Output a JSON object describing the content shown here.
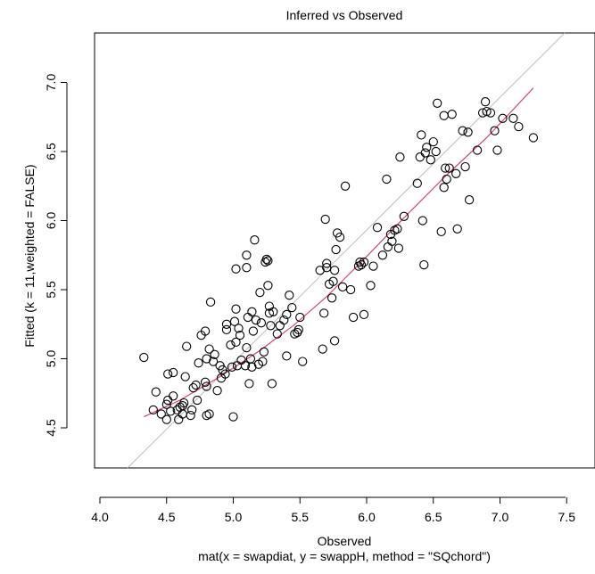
{
  "chart_data": {
    "type": "scatter",
    "title": "Inferred vs Observed",
    "xlabel": "Observed",
    "subtitle": "mat(x = swapdiat, y = swappH, method = \"SQchord\")",
    "ylabel": "Fitted (k = 11,weighted = FALSE)",
    "xlim": [
      4.0,
      7.5
    ],
    "ylim": [
      4.5,
      7.0
    ],
    "x_ticks": [
      "4.0",
      "4.5",
      "5.0",
      "5.5",
      "6.0",
      "6.5",
      "7.0",
      "7.5"
    ],
    "y_ticks": [
      "4.5",
      "5.0",
      "5.5",
      "6.0",
      "6.5",
      "7.0"
    ],
    "grid": false,
    "reference_line": {
      "type": "identity",
      "color": "#bebebe"
    },
    "smooth_line": {
      "color": "#d9456b",
      "points": [
        [
          4.33,
          4.58
        ],
        [
          4.6,
          4.7
        ],
        [
          4.9,
          4.87
        ],
        [
          5.2,
          5.06
        ],
        [
          5.45,
          5.24
        ],
        [
          5.7,
          5.45
        ],
        [
          6.0,
          5.74
        ],
        [
          6.3,
          6.04
        ],
        [
          6.6,
          6.33
        ],
        [
          6.9,
          6.6
        ],
        [
          7.25,
          6.96
        ]
      ]
    },
    "points": [
      [
        4.33,
        5.01
      ],
      [
        4.4,
        4.63
      ],
      [
        4.42,
        4.76
      ],
      [
        4.46,
        4.6
      ],
      [
        4.5,
        4.67
      ],
      [
        4.51,
        4.7
      ],
      [
        4.51,
        4.89
      ],
      [
        4.53,
        4.62
      ],
      [
        4.55,
        4.9
      ],
      [
        4.55,
        4.73
      ],
      [
        4.5,
        4.56
      ],
      [
        4.58,
        4.63
      ],
      [
        4.59,
        4.56
      ],
      [
        4.6,
        4.65
      ],
      [
        4.62,
        4.66
      ],
      [
        4.62,
        4.6
      ],
      [
        4.63,
        4.68
      ],
      [
        4.64,
        4.87
      ],
      [
        4.65,
        5.09
      ],
      [
        4.68,
        4.59
      ],
      [
        4.69,
        4.63
      ],
      [
        4.7,
        4.79
      ],
      [
        4.72,
        4.81
      ],
      [
        4.73,
        4.7
      ],
      [
        4.74,
        4.97
      ],
      [
        4.76,
        5.17
      ],
      [
        4.79,
        5.2
      ],
      [
        4.79,
        4.83
      ],
      [
        4.8,
        4.59
      ],
      [
        4.8,
        5.0
      ],
      [
        4.8,
        4.8
      ],
      [
        4.82,
        4.6
      ],
      [
        4.82,
        5.07
      ],
      [
        4.83,
        5.41
      ],
      [
        4.85,
        4.98
      ],
      [
        4.86,
        5.03
      ],
      [
        4.88,
        4.77
      ],
      [
        4.9,
        4.95
      ],
      [
        4.91,
        4.86
      ],
      [
        4.92,
        4.92
      ],
      [
        4.94,
        4.89
      ],
      [
        4.95,
        5.21
      ],
      [
        4.95,
        5.25
      ],
      [
        4.98,
        5.1
      ],
      [
        4.99,
        4.94
      ],
      [
        5.0,
        4.58
      ],
      [
        5.01,
        5.27
      ],
      [
        5.02,
        5.36
      ],
      [
        5.02,
        5.12
      ],
      [
        5.02,
        5.65
      ],
      [
        5.03,
        4.95
      ],
      [
        5.04,
        5.22
      ],
      [
        5.05,
        5.17
      ],
      [
        5.06,
        4.99
      ],
      [
        5.09,
        4.95
      ],
      [
        5.1,
        5.66
      ],
      [
        5.1,
        5.75
      ],
      [
        5.1,
        5.08
      ],
      [
        5.11,
        5.3
      ],
      [
        5.12,
        4.82
      ],
      [
        5.13,
        5.0
      ],
      [
        5.14,
        5.34
      ],
      [
        5.14,
        4.94
      ],
      [
        5.15,
        5.2
      ],
      [
        5.16,
        5.86
      ],
      [
        5.17,
        5.28
      ],
      [
        5.19,
        4.96
      ],
      [
        5.2,
        5.48
      ],
      [
        5.21,
        5.26
      ],
      [
        5.22,
        4.98
      ],
      [
        5.23,
        5.05
      ],
      [
        5.24,
        5.7
      ],
      [
        5.25,
        5.72
      ],
      [
        5.26,
        5.71
      ],
      [
        5.26,
        5.53
      ],
      [
        5.27,
        5.33
      ],
      [
        5.27,
        5.38
      ],
      [
        5.28,
        5.24
      ],
      [
        5.29,
        4.82
      ],
      [
        5.3,
        5.34
      ],
      [
        5.33,
        5.18
      ],
      [
        5.35,
        5.24
      ],
      [
        5.38,
        5.28
      ],
      [
        5.4,
        5.32
      ],
      [
        5.4,
        5.02
      ],
      [
        5.42,
        5.46
      ],
      [
        5.44,
        5.37
      ],
      [
        5.46,
        5.18
      ],
      [
        5.48,
        5.19
      ],
      [
        5.49,
        5.21
      ],
      [
        5.5,
        5.3
      ],
      [
        5.52,
        4.98
      ],
      [
        5.65,
        5.64
      ],
      [
        5.67,
        5.07
      ],
      [
        5.68,
        5.33
      ],
      [
        5.69,
        6.01
      ],
      [
        5.7,
        5.66
      ],
      [
        5.7,
        5.69
      ],
      [
        5.72,
        5.54
      ],
      [
        5.74,
        5.44
      ],
      [
        5.75,
        5.56
      ],
      [
        5.76,
        5.64
      ],
      [
        5.76,
        5.13
      ],
      [
        5.77,
        5.79
      ],
      [
        5.78,
        5.91
      ],
      [
        5.8,
        5.88
      ],
      [
        5.82,
        5.52
      ],
      [
        5.84,
        6.25
      ],
      [
        5.88,
        5.5
      ],
      [
        5.9,
        5.3
      ],
      [
        5.94,
        5.67
      ],
      [
        5.95,
        5.7
      ],
      [
        5.96,
        5.68
      ],
      [
        5.98,
        5.32
      ],
      [
        5.98,
        5.7
      ],
      [
        6.03,
        5.53
      ],
      [
        6.05,
        5.67
      ],
      [
        6.08,
        5.95
      ],
      [
        6.12,
        5.75
      ],
      [
        6.15,
        6.3
      ],
      [
        6.16,
        5.81
      ],
      [
        6.18,
        5.9
      ],
      [
        6.19,
        5.85
      ],
      [
        6.21,
        5.93
      ],
      [
        6.23,
        5.94
      ],
      [
        6.24,
        5.8
      ],
      [
        6.25,
        6.46
      ],
      [
        6.28,
        6.03
      ],
      [
        6.38,
        6.27
      ],
      [
        6.4,
        6.46
      ],
      [
        6.41,
        6.62
      ],
      [
        6.42,
        6.0
      ],
      [
        6.43,
        5.68
      ],
      [
        6.44,
        6.49
      ],
      [
        6.45,
        6.53
      ],
      [
        6.48,
        6.44
      ],
      [
        6.5,
        6.57
      ],
      [
        6.52,
        6.5
      ],
      [
        6.53,
        6.85
      ],
      [
        6.56,
        5.92
      ],
      [
        6.58,
        6.24
      ],
      [
        6.58,
        6.76
      ],
      [
        6.59,
        6.38
      ],
      [
        6.6,
        6.3
      ],
      [
        6.62,
        6.38
      ],
      [
        6.64,
        6.77
      ],
      [
        6.67,
        6.34
      ],
      [
        6.68,
        5.94
      ],
      [
        6.72,
        6.65
      ],
      [
        6.74,
        6.39
      ],
      [
        6.76,
        6.64
      ],
      [
        6.77,
        6.15
      ],
      [
        6.83,
        6.51
      ],
      [
        6.87,
        6.78
      ],
      [
        6.89,
        6.86
      ],
      [
        6.9,
        6.79
      ],
      [
        6.93,
        6.78
      ],
      [
        6.96,
        6.65
      ],
      [
        6.98,
        6.51
      ],
      [
        7.02,
        6.74
      ],
      [
        7.1,
        6.74
      ],
      [
        7.14,
        6.68
      ],
      [
        7.25,
        6.6
      ]
    ]
  }
}
